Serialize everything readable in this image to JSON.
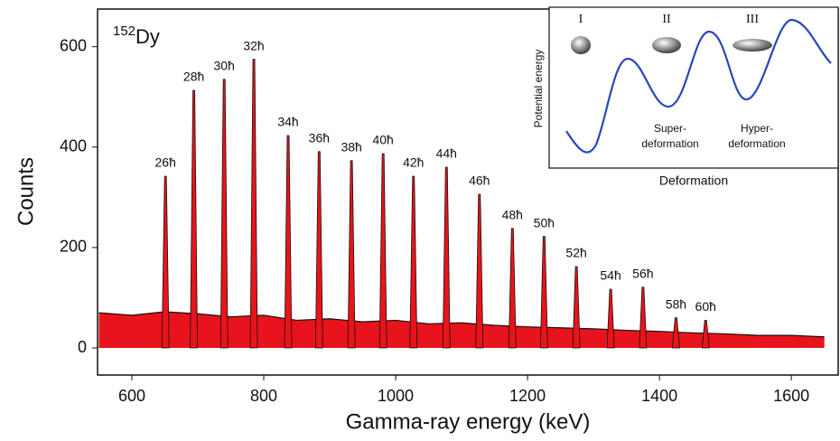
{
  "chart_data": {
    "type": "spectrum",
    "isotope": {
      "mass": "152",
      "element": "Dy"
    },
    "x_label": "Gamma-ray energy (keV)",
    "y_label": "Counts",
    "xlim": [
      548,
      1671
    ],
    "ylim": [
      -54,
      675
    ],
    "xticks": [
      600,
      800,
      1000,
      1200,
      1400,
      1600
    ],
    "yticks": [
      0,
      200,
      400,
      600
    ],
    "fill_color": "#e8141b",
    "line_color": "#111111",
    "background": {
      "x": [
        550,
        600,
        650,
        700,
        750,
        800,
        850,
        900,
        950,
        1000,
        1050,
        1100,
        1150,
        1200,
        1250,
        1300,
        1350,
        1400,
        1450,
        1500,
        1550,
        1600,
        1650
      ],
      "values": [
        70,
        65,
        72,
        68,
        62,
        65,
        55,
        58,
        52,
        55,
        48,
        50,
        45,
        42,
        40,
        38,
        35,
        33,
        30,
        28,
        25,
        25,
        22
      ]
    },
    "peaks": [
      {
        "label": "26ħ",
        "energy": 651,
        "counts": 342
      },
      {
        "label": "28ħ",
        "energy": 694,
        "counts": 513
      },
      {
        "label": "30ħ",
        "energy": 740,
        "counts": 535
      },
      {
        "label": "32ħ",
        "energy": 785,
        "counts": 575
      },
      {
        "label": "34ħ",
        "energy": 837,
        "counts": 423
      },
      {
        "label": "36ħ",
        "energy": 884,
        "counts": 391
      },
      {
        "label": "38ħ",
        "energy": 933,
        "counts": 373
      },
      {
        "label": "40ħ",
        "energy": 981,
        "counts": 387
      },
      {
        "label": "42ħ",
        "energy": 1027,
        "counts": 342
      },
      {
        "label": "44ħ",
        "energy": 1077,
        "counts": 360
      },
      {
        "label": "46ħ",
        "energy": 1127,
        "counts": 306
      },
      {
        "label": "48ħ",
        "energy": 1177,
        "counts": 238
      },
      {
        "label": "50ħ",
        "energy": 1225,
        "counts": 222
      },
      {
        "label": "52ħ",
        "energy": 1274,
        "counts": 162
      },
      {
        "label": "54ħ",
        "energy": 1326,
        "counts": 117
      },
      {
        "label": "56ħ",
        "energy": 1375,
        "counts": 121
      },
      {
        "label": "58ħ",
        "energy": 1425,
        "counts": 60
      },
      {
        "label": "60ħ",
        "energy": 1470,
        "counts": 55
      }
    ]
  },
  "inset": {
    "y_label": "Potential energy",
    "x_label": "Deformation",
    "wells": [
      "I",
      "II",
      "III"
    ],
    "notes": [
      [
        "Super-",
        "deformation"
      ],
      [
        "Hyper-",
        "deformation"
      ]
    ]
  }
}
